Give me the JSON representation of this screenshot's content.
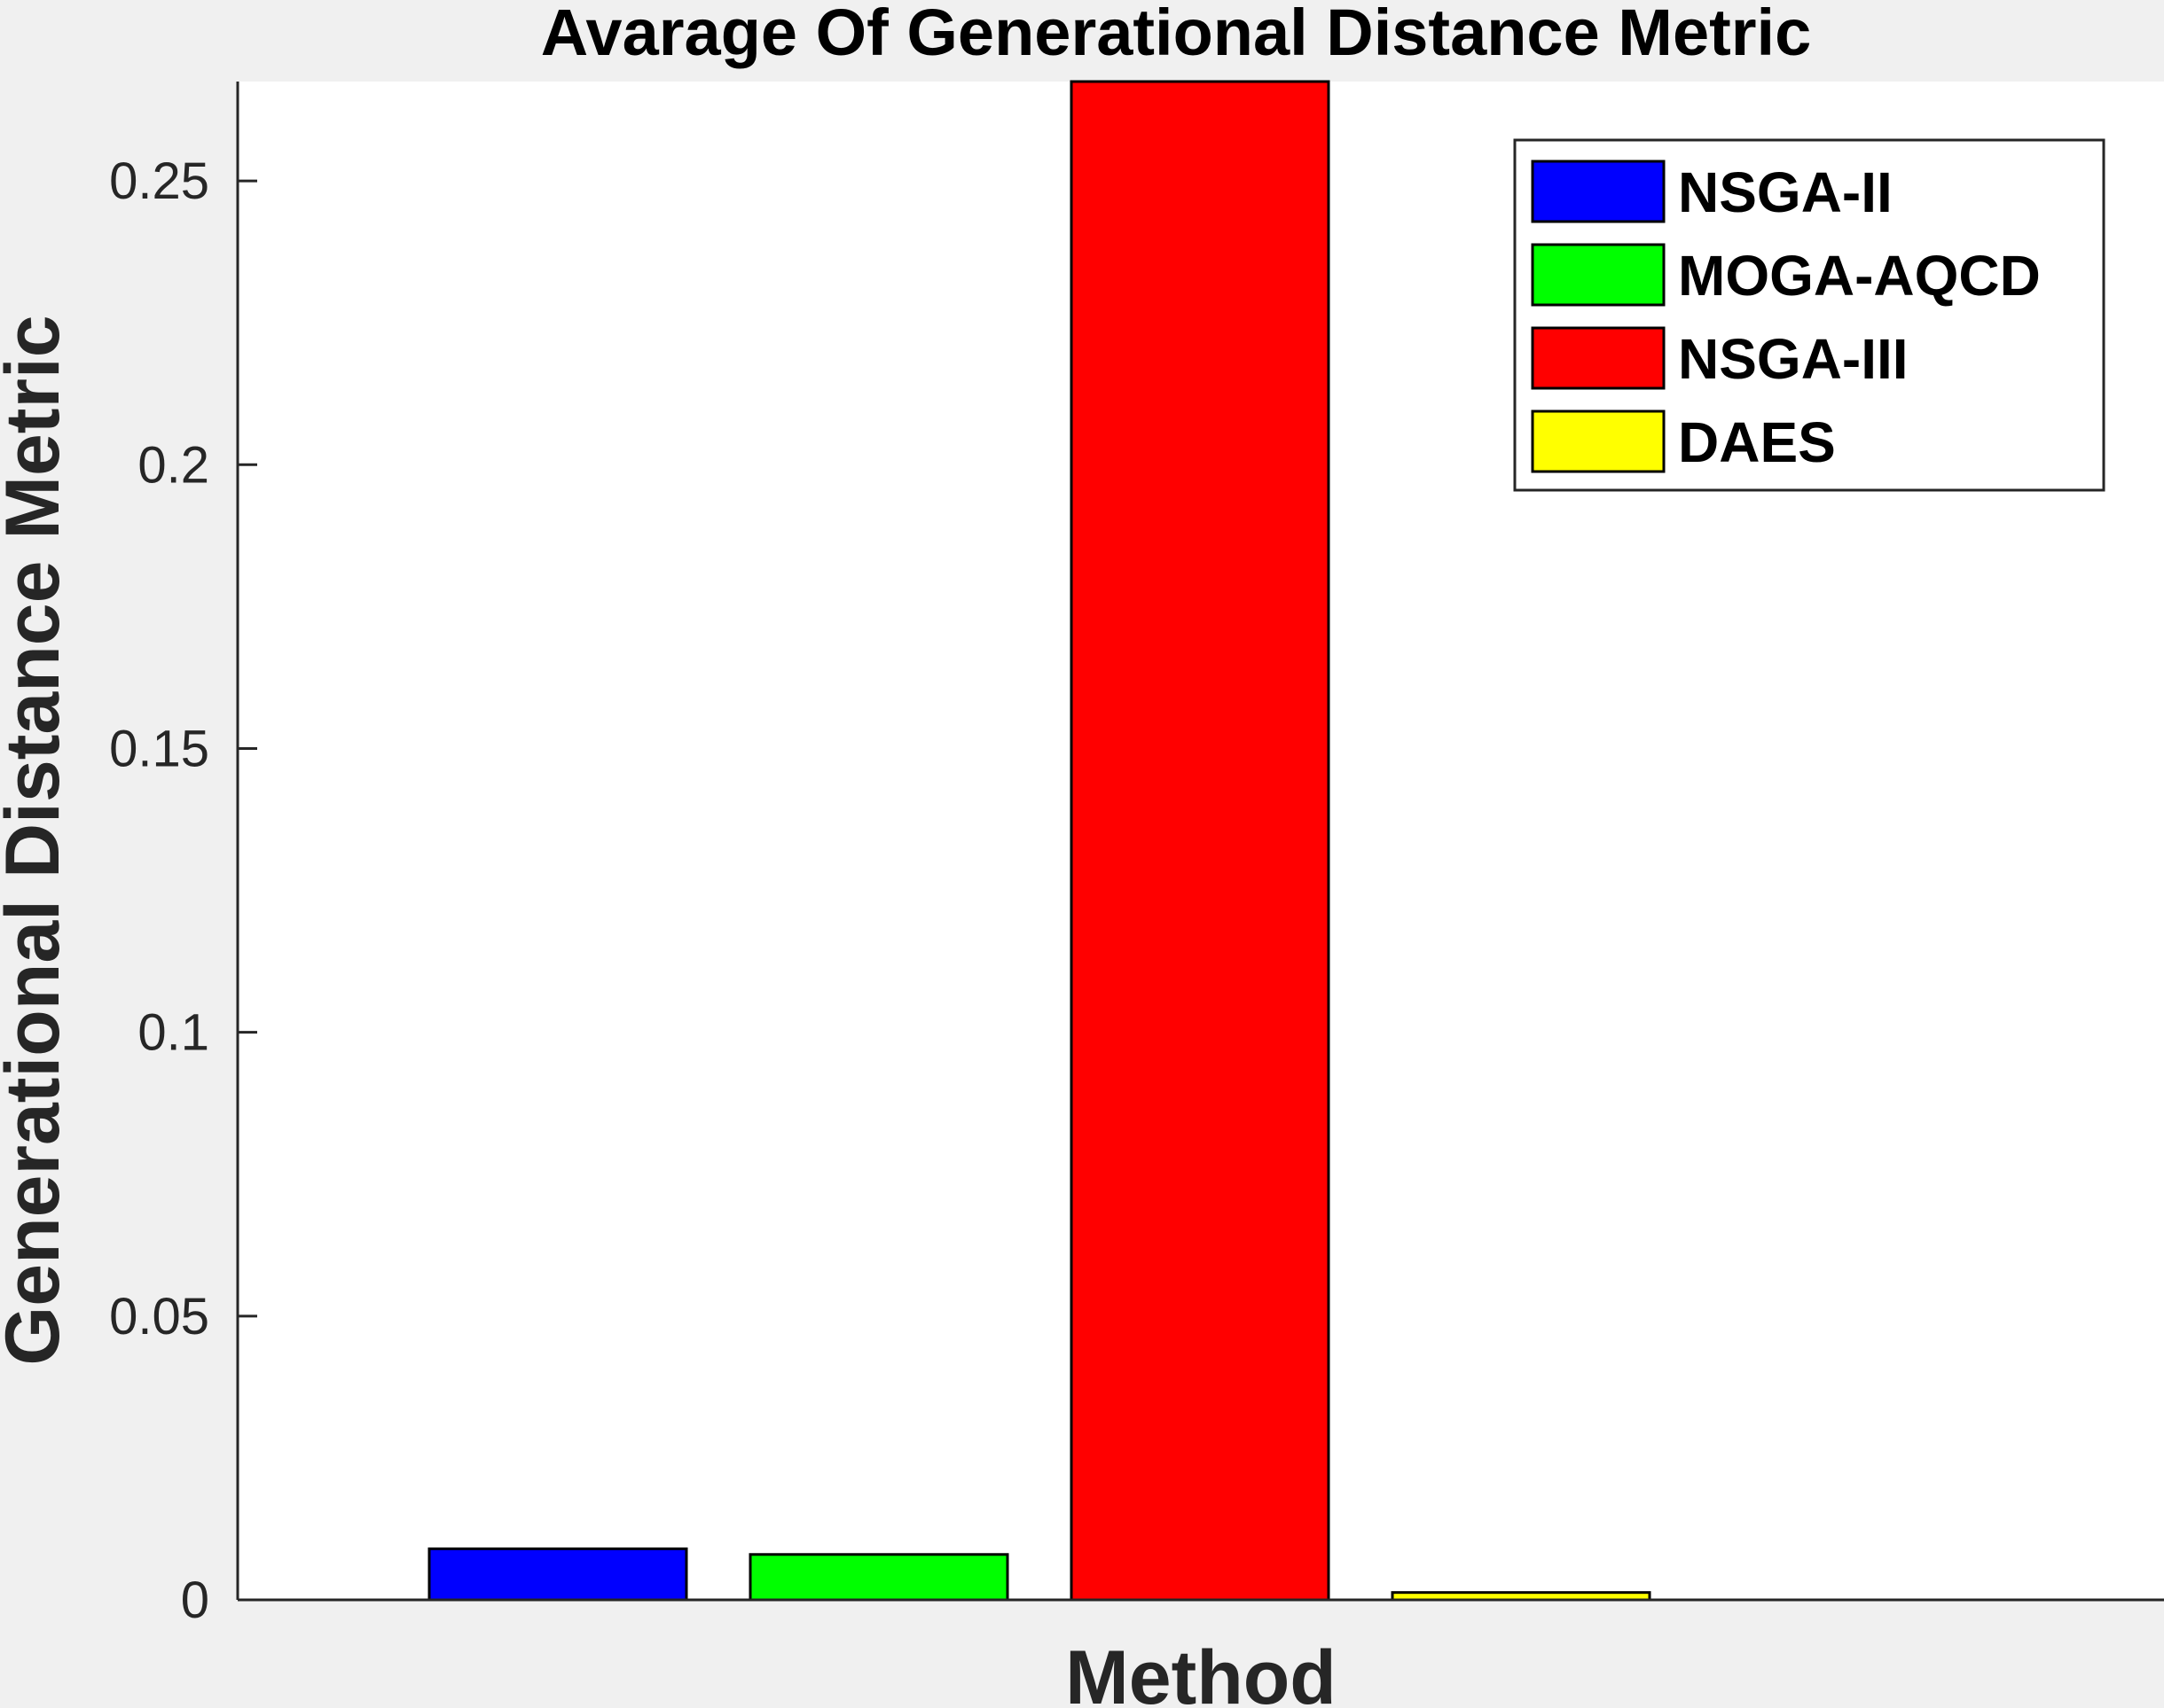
{
  "chart_data": {
    "type": "bar",
    "title": "Avarage Of Generational Distance Metric",
    "xlabel": "Method",
    "ylabel": "Generational Distance Metric",
    "ylim": [
      0,
      0.2675
    ],
    "yticks": [
      0,
      0.05,
      0.1,
      0.15,
      0.2,
      0.25
    ],
    "ytick_labels": [
      "0",
      "0.05",
      "0.1",
      "0.15",
      "0.2",
      "0.25"
    ],
    "grid": false,
    "legend_position": "top-right",
    "series": [
      {
        "name": "NSGA-II",
        "value": 0.009,
        "color": "#0000ff"
      },
      {
        "name": "MOGA-AQCD",
        "value": 0.008,
        "color": "#00ff00"
      },
      {
        "name": "NSGA-III",
        "value": 0.2675,
        "color": "#ff0000"
      },
      {
        "name": "DAES",
        "value": 0.0013,
        "color": "#ffff00"
      }
    ]
  }
}
